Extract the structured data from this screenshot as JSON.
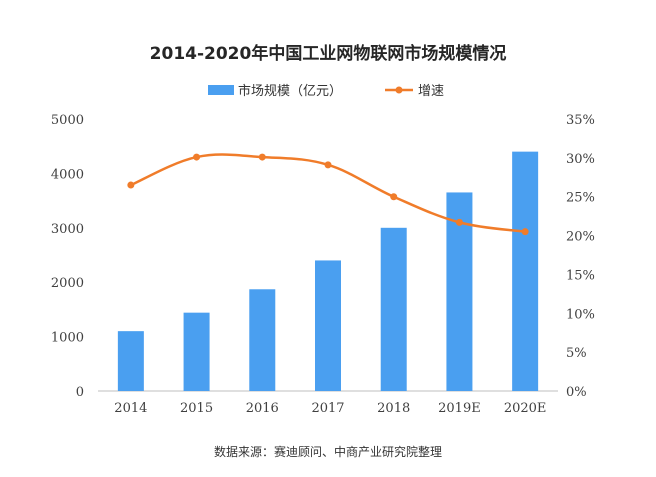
{
  "chart_data": {
    "type": "bar",
    "title": "2014-2020年中国工业网物联网市场规模情况",
    "categories": [
      "2014",
      "2015",
      "2016",
      "2017",
      "2018",
      "2019E",
      "2020E"
    ],
    "series": [
      {
        "name": "市场规模（亿元）",
        "type": "bar",
        "axis": "left",
        "color": "#4a9ff0",
        "values": [
          1100,
          1440,
          1870,
          2400,
          3000,
          3650,
          4400
        ]
      },
      {
        "name": "增速",
        "type": "line",
        "axis": "right",
        "color": "#f07c2a",
        "values": [
          26.5,
          30.1,
          30.1,
          29.1,
          25.0,
          21.7,
          20.5
        ]
      }
    ],
    "ylim_left": [
      0,
      5000
    ],
    "yticks_left": [
      "0",
      "1000",
      "2000",
      "3000",
      "4000",
      "5000"
    ],
    "ylim_right": [
      0,
      35
    ],
    "yticks_right": [
      "0%",
      "5%",
      "10%",
      "15%",
      "20%",
      "25%",
      "30%",
      "35%"
    ],
    "grid": false,
    "legend_position": "top-center",
    "source": "数据来源：赛迪顾问、中商产业研究院整理"
  }
}
